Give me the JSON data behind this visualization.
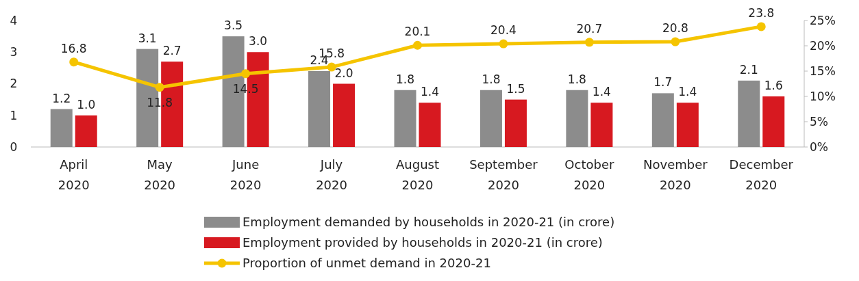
{
  "chart_data": {
    "type": "bar",
    "categories": [
      "April 2020",
      "May 2020",
      "June 2020",
      "July 2020",
      "August 2020",
      "September 2020",
      "October 2020",
      "November 2020",
      "December 2020"
    ],
    "series": [
      {
        "name": "Employment demanded by households in 2020-21 (in crore)",
        "color": "#8c8c8c",
        "values": [
          1.2,
          3.1,
          3.5,
          2.4,
          1.8,
          1.8,
          1.8,
          1.7,
          2.1
        ],
        "value_labels": [
          "1.2",
          "3.1",
          "3.5",
          "2.4",
          "1.8",
          "1.8",
          "1.8",
          "1.7",
          "2.1"
        ]
      },
      {
        "name": "Employment provided by households in 2020-21 (in crore)",
        "color": "#d71920",
        "values": [
          1.0,
          2.7,
          3.0,
          2.0,
          1.4,
          1.5,
          1.4,
          1.4,
          1.6
        ],
        "value_labels": [
          "1.0",
          "2.7",
          "3.0",
          "2.0",
          "1.4",
          "1.5",
          "1.4",
          "1.4",
          "1.6"
        ]
      },
      {
        "name": "Proportion of unmet demand in 2020-21",
        "type": "line",
        "axis": "y2",
        "color": "#f5c400",
        "marker": "circle",
        "values": [
          16.8,
          11.8,
          14.5,
          15.8,
          20.1,
          20.4,
          20.7,
          20.8,
          23.8
        ],
        "value_labels": [
          "16.8",
          "11.8",
          "14.5",
          "15.8",
          "20.1",
          "20.4",
          "20.7",
          "20.8",
          "23.8"
        ]
      }
    ],
    "ylim": [
      0,
      4
    ],
    "yticks": [
      0,
      1,
      2,
      3,
      4
    ],
    "y2lim": [
      0,
      25
    ],
    "y2ticks": [
      {
        "value": 0,
        "label": "0%"
      },
      {
        "value": 5,
        "label": "5%"
      },
      {
        "value": 10,
        "label": "10%"
      },
      {
        "value": 15,
        "label": "15%"
      },
      {
        "value": 20,
        "label": "20%"
      },
      {
        "value": 25,
        "label": "25%"
      }
    ],
    "legend": "bottom",
    "grid": false
  }
}
